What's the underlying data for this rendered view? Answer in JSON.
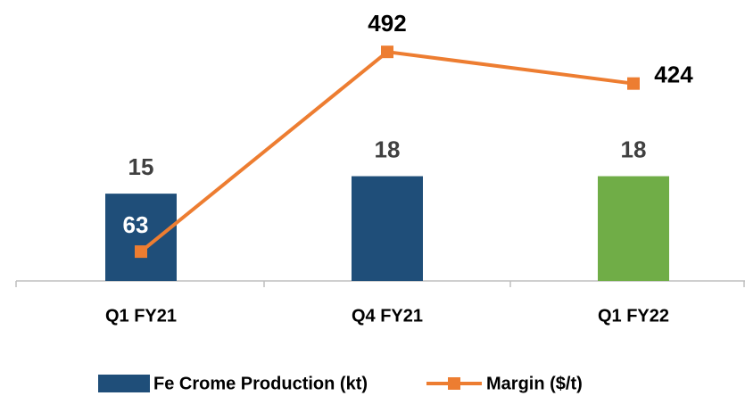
{
  "chart_data": {
    "type": "bar-line",
    "categories": [
      "Q1 FY21",
      "Q4 FY21",
      "Q1 FY22"
    ],
    "series": [
      {
        "name": "Fe Crome Production (kt)",
        "type": "bar",
        "color": "#1f4e79",
        "colors": [
          "#1f4e79",
          "#1f4e79",
          "#70ad47"
        ],
        "values": [
          15,
          18,
          18
        ]
      },
      {
        "name": "Margin ($/t)",
        "type": "line",
        "axis": "y2",
        "color": "#ed7d31",
        "values": [
          63,
          492,
          424
        ]
      }
    ],
    "ylim": [
      0,
      40
    ],
    "y2lim": [
      0,
      500
    ],
    "legend": "bottom"
  }
}
